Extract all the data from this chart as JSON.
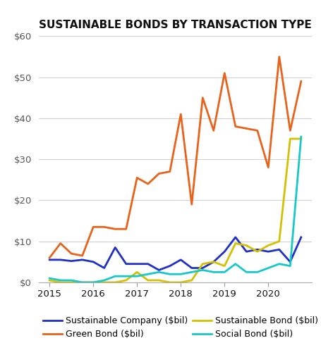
{
  "title": "SUSTAINABLE BONDS BY TRANSACTION TYPE",
  "ylim": [
    0,
    60
  ],
  "yticks": [
    0,
    10,
    20,
    30,
    40,
    50,
    60
  ],
  "background_color": "#ffffff",
  "series": {
    "Sustainable Company ($bil)": {
      "color": "#1e30c8",
      "linewidth": 2.0,
      "x": [
        2015.0,
        2015.25,
        2015.5,
        2015.75,
        2016.0,
        2016.25,
        2016.5,
        2016.75,
        2017.0,
        2017.25,
        2017.5,
        2017.75,
        2018.0,
        2018.25,
        2018.5,
        2018.75,
        2019.0,
        2019.25,
        2019.5,
        2019.75,
        2020.0,
        2020.25,
        2020.5,
        2020.75
      ],
      "y": [
        5.5,
        5.5,
        5.2,
        5.5,
        5.0,
        3.5,
        8.5,
        4.5,
        4.5,
        4.5,
        3.0,
        4.0,
        5.5,
        3.5,
        3.5,
        5.0,
        7.5,
        11.0,
        7.5,
        8.0,
        7.5,
        8.0,
        5.0,
        11.0
      ]
    },
    "Green Bond ($bil)": {
      "color": "#e8621a",
      "linewidth": 2.0,
      "x": [
        2015.0,
        2015.25,
        2015.5,
        2015.75,
        2016.0,
        2016.25,
        2016.5,
        2016.75,
        2017.0,
        2017.25,
        2017.5,
        2017.75,
        2018.0,
        2018.25,
        2018.5,
        2018.75,
        2019.0,
        2019.25,
        2019.5,
        2019.75,
        2020.0,
        2020.25,
        2020.5,
        2020.75
      ],
      "y": [
        6.0,
        9.5,
        7.0,
        6.5,
        13.5,
        13.5,
        13.0,
        13.0,
        25.5,
        24.0,
        26.5,
        27.0,
        41.0,
        19.0,
        45.0,
        37.0,
        51.0,
        38.0,
        37.5,
        37.0,
        28.0,
        55.0,
        37.0,
        49.0
      ]
    },
    "Sustainable Bond ($bil)": {
      "color": "#d4c000",
      "linewidth": 2.0,
      "x": [
        2015.0,
        2015.25,
        2015.5,
        2015.75,
        2016.0,
        2016.25,
        2016.5,
        2016.75,
        2017.0,
        2017.25,
        2017.5,
        2017.75,
        2018.0,
        2018.25,
        2018.5,
        2018.75,
        2019.0,
        2019.25,
        2019.5,
        2019.75,
        2020.0,
        2020.25,
        2020.5,
        2020.75
      ],
      "y": [
        0.5,
        0.0,
        0.0,
        0.0,
        0.0,
        0.0,
        0.0,
        0.5,
        2.5,
        0.5,
        0.5,
        0.0,
        0.0,
        0.5,
        4.5,
        5.0,
        4.0,
        9.5,
        9.0,
        7.5,
        9.0,
        10.0,
        35.0,
        35.0
      ]
    },
    "Social Bond ($bil)": {
      "color": "#17c8c8",
      "linewidth": 2.0,
      "x": [
        2015.0,
        2015.25,
        2015.5,
        2015.75,
        2016.0,
        2016.25,
        2016.5,
        2016.75,
        2017.0,
        2017.25,
        2017.5,
        2017.75,
        2018.0,
        2018.25,
        2018.5,
        2018.75,
        2019.0,
        2019.25,
        2019.5,
        2019.75,
        2020.0,
        2020.25,
        2020.5,
        2020.75
      ],
      "y": [
        1.0,
        0.5,
        0.5,
        0.0,
        0.0,
        0.5,
        1.5,
        1.5,
        1.5,
        2.0,
        2.5,
        2.0,
        2.0,
        2.5,
        3.0,
        2.5,
        2.5,
        4.5,
        2.5,
        2.5,
        3.5,
        4.5,
        4.0,
        35.5
      ]
    }
  },
  "xticks": [
    2015,
    2016,
    2017,
    2018,
    2019,
    2020
  ],
  "xlim": [
    2014.75,
    2021.0
  ],
  "legend_order": [
    "Sustainable Company ($bil)",
    "Green Bond ($bil)",
    "Sustainable Bond ($bil)",
    "Social Bond ($bil)"
  ],
  "grid_color": "#d0d0d0",
  "title_fontsize": 11,
  "tick_fontsize": 9.5,
  "legend_fontsize": 9
}
